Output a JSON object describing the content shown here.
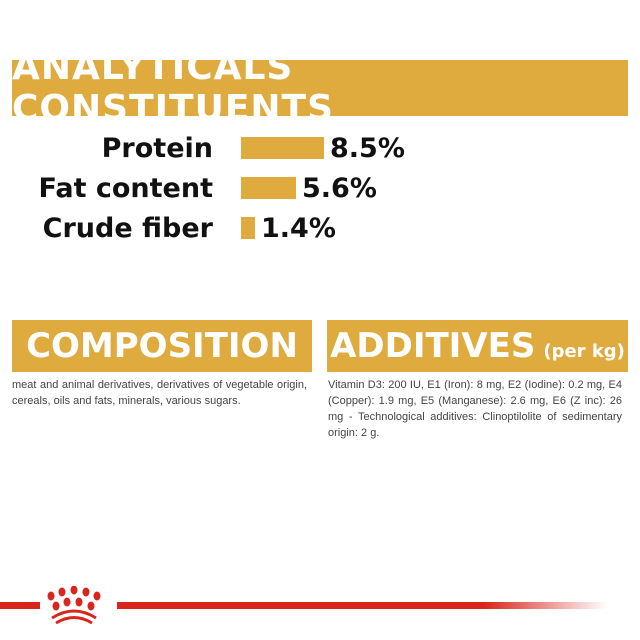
{
  "analyticals": {
    "title": "ANALYTICALS CONSTITUENTS",
    "items": [
      {
        "label": "Protein",
        "value": 8.5,
        "display": "8.5%"
      },
      {
        "label": "Fat content",
        "value": 5.6,
        "display": "5.6%"
      },
      {
        "label": "Crude fiber",
        "value": 1.4,
        "display": "1.4%"
      }
    ]
  },
  "composition": {
    "title": "COMPOSITION",
    "text": "meat and animal derivatives, derivatives of vegetable origin, cereals, oils and fats, minerals, various sugars."
  },
  "additives": {
    "title": "ADDITIVES",
    "unit": "(per kg)",
    "text": "Vitamin D3: 200 IU, E1 (Iron): 8 mg, E2 (Iodine): 0.2 mg, E4 (Copper): 1.9 mg, E5 (Manganese): 2.6 mg, E6 (Z inc): 26 mg - Technological additives: Clinoptilolite of sedimentary origin: 2 g."
  },
  "colors": {
    "accent": "#e0ab3e",
    "brand_red": "#d9261c"
  },
  "logo": {
    "icon": "crown-paw-logo"
  }
}
